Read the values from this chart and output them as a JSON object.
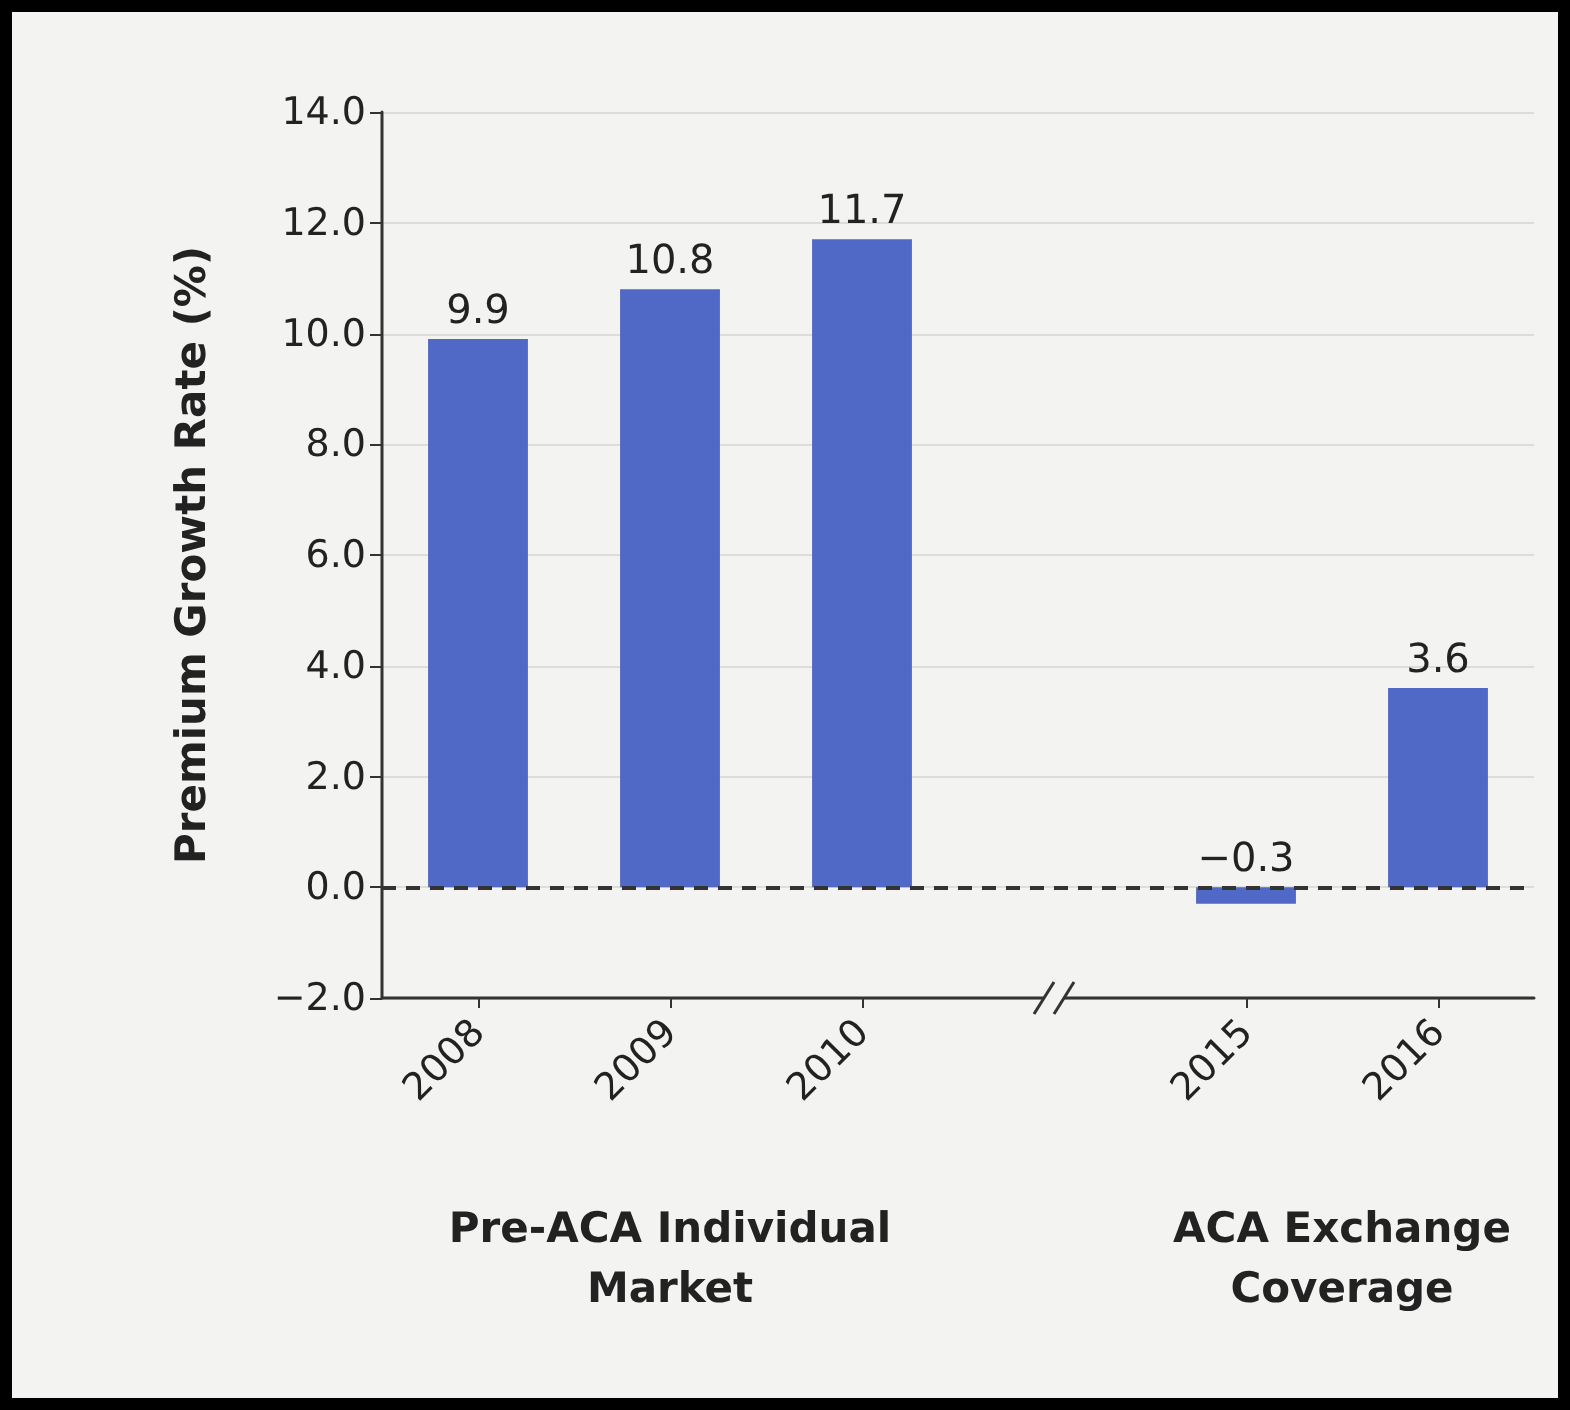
{
  "chart_data": {
    "type": "bar",
    "ylabel": "Premium Growth Rate (%)",
    "categories": [
      "2008",
      "2009",
      "2010",
      null,
      "2015",
      "2016"
    ],
    "values": [
      9.9,
      10.8,
      11.7,
      null,
      -0.3,
      3.6
    ],
    "value_labels": [
      "9.9",
      "10.8",
      "11.7",
      null,
      "−0.3",
      "3.6"
    ],
    "color": "#5068c6",
    "ylim": [
      -2,
      14
    ],
    "yticks": [
      {
        "value": -2,
        "label": "−2.0"
      },
      {
        "value": 0,
        "label": "0.0"
      },
      {
        "value": 2,
        "label": "2.0"
      },
      {
        "value": 4,
        "label": "4.0"
      },
      {
        "value": 6,
        "label": "6.0"
      },
      {
        "value": 8,
        "label": "8.0"
      },
      {
        "value": 10,
        "label": "10.0"
      },
      {
        "value": 12,
        "label": "12.0"
      },
      {
        "value": 14,
        "label": "14.0"
      }
    ],
    "grid": "y",
    "ref_lines": [
      {
        "axis": "y",
        "value": 0,
        "line_style": "dashed",
        "color": "#333333"
      }
    ],
    "annotations": [
      "Pre-ACA Individual\nMarket",
      "ACA Exchange\nCoverage"
    ]
  }
}
